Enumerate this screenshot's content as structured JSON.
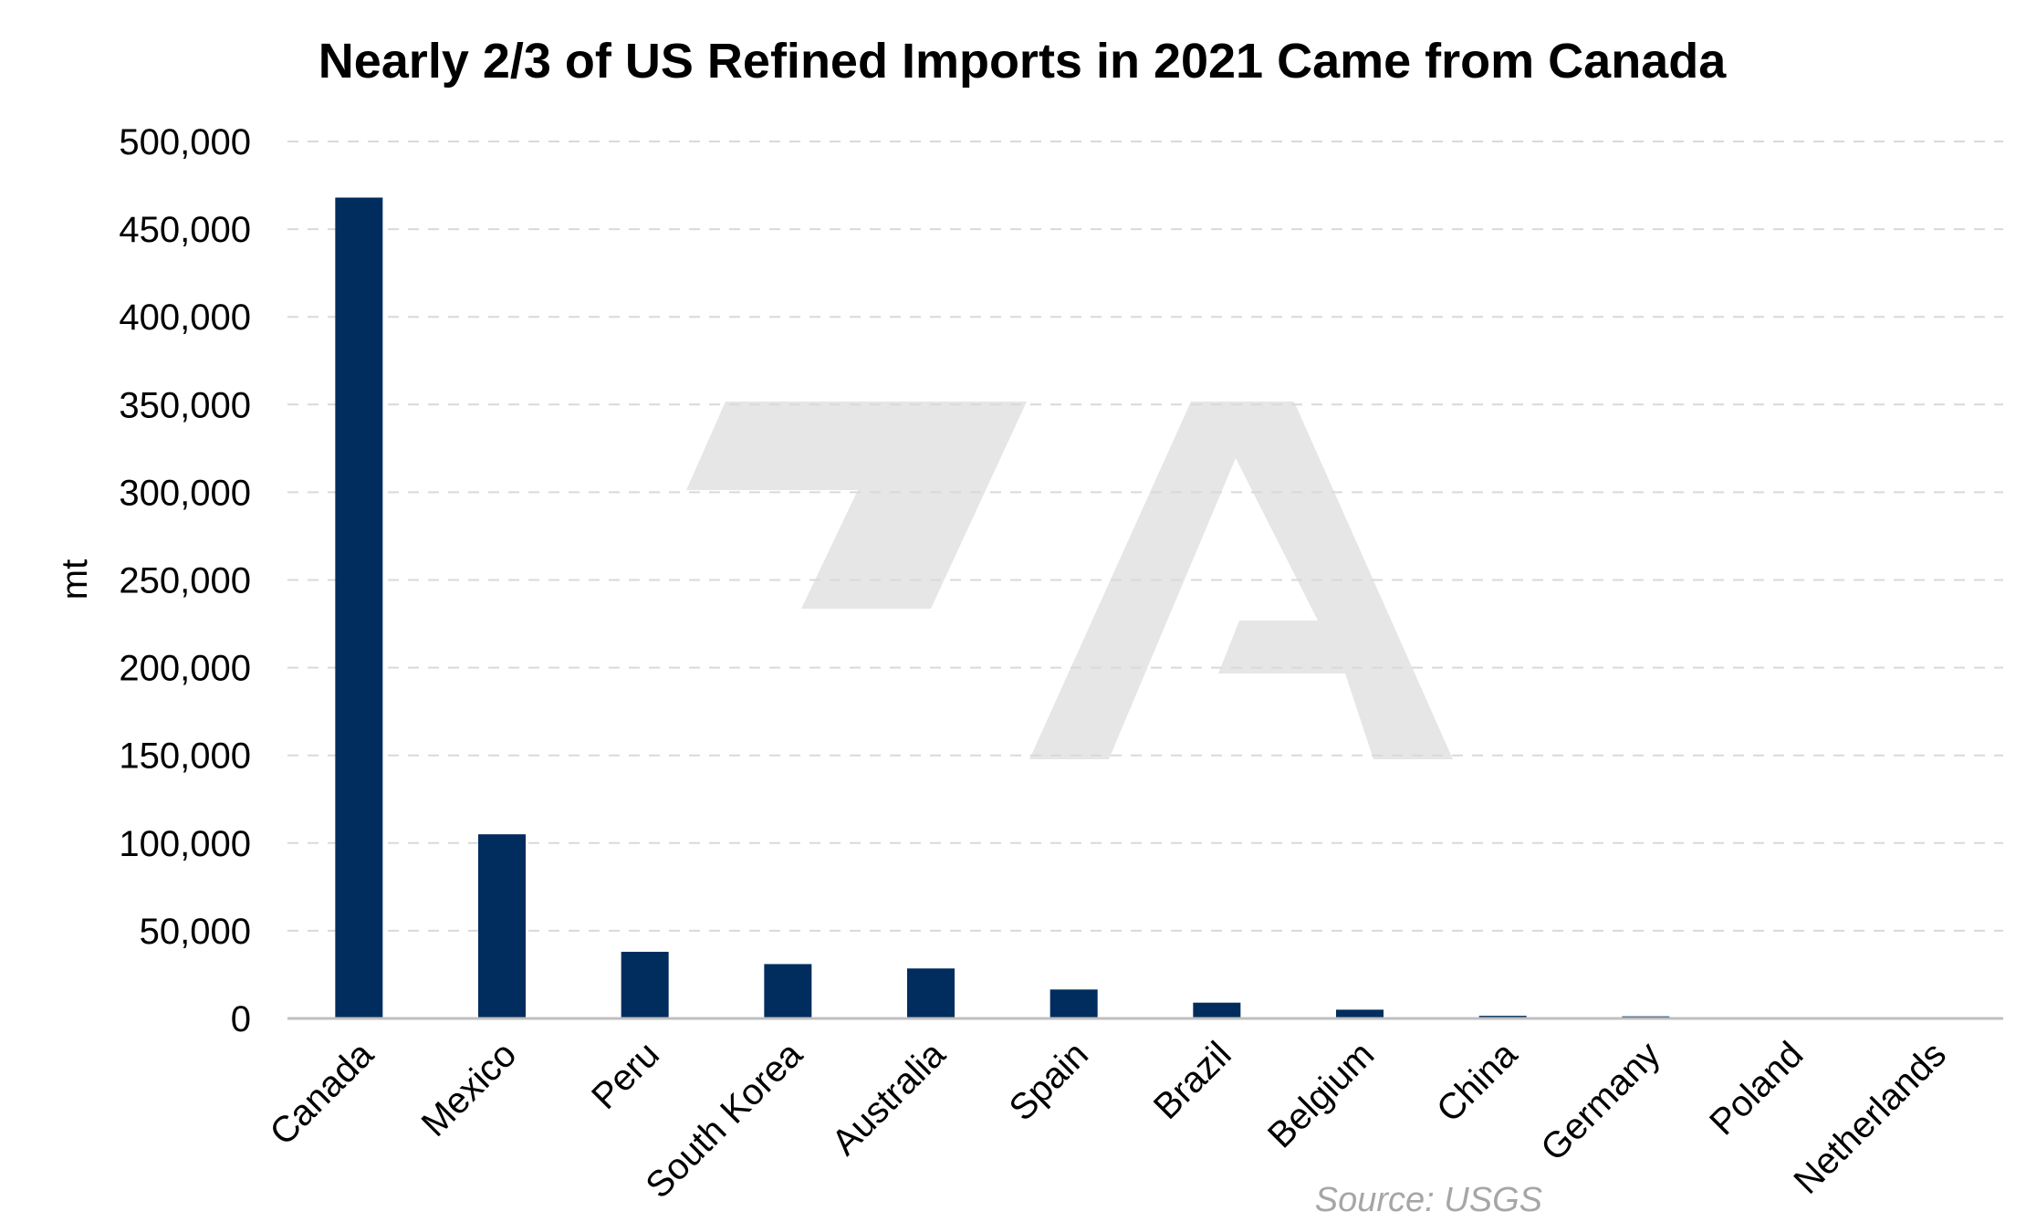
{
  "chart_data": {
    "type": "bar",
    "title": "Nearly 2/3 of US Refined Imports in 2021 Came from Canada",
    "ylabel": "mt",
    "xlabel": "",
    "categories": [
      "Canada",
      "Mexico",
      "Peru",
      "South Korea",
      "Australia",
      "Spain",
      "Brazil",
      "Belgium",
      "China",
      "Germany",
      "Poland",
      "Netherlands"
    ],
    "values": [
      468000,
      105000,
      38000,
      31000,
      28500,
      16500,
      9000,
      5000,
      1500,
      1200,
      600,
      500
    ],
    "ylim": [
      0,
      500000
    ],
    "yticks": [
      0,
      50000,
      100000,
      150000,
      200000,
      250000,
      300000,
      350000,
      400000,
      450000,
      500000
    ],
    "ytick_labels": [
      "0",
      "50,000",
      "100,000",
      "150,000",
      "200,000",
      "250,000",
      "300,000",
      "350,000",
      "400,000",
      "450,000",
      "500,000"
    ],
    "grid": true,
    "bar_color": "#002d5e",
    "source": "Source: USGS"
  },
  "watermark": {
    "color": "#e6e6e6"
  }
}
